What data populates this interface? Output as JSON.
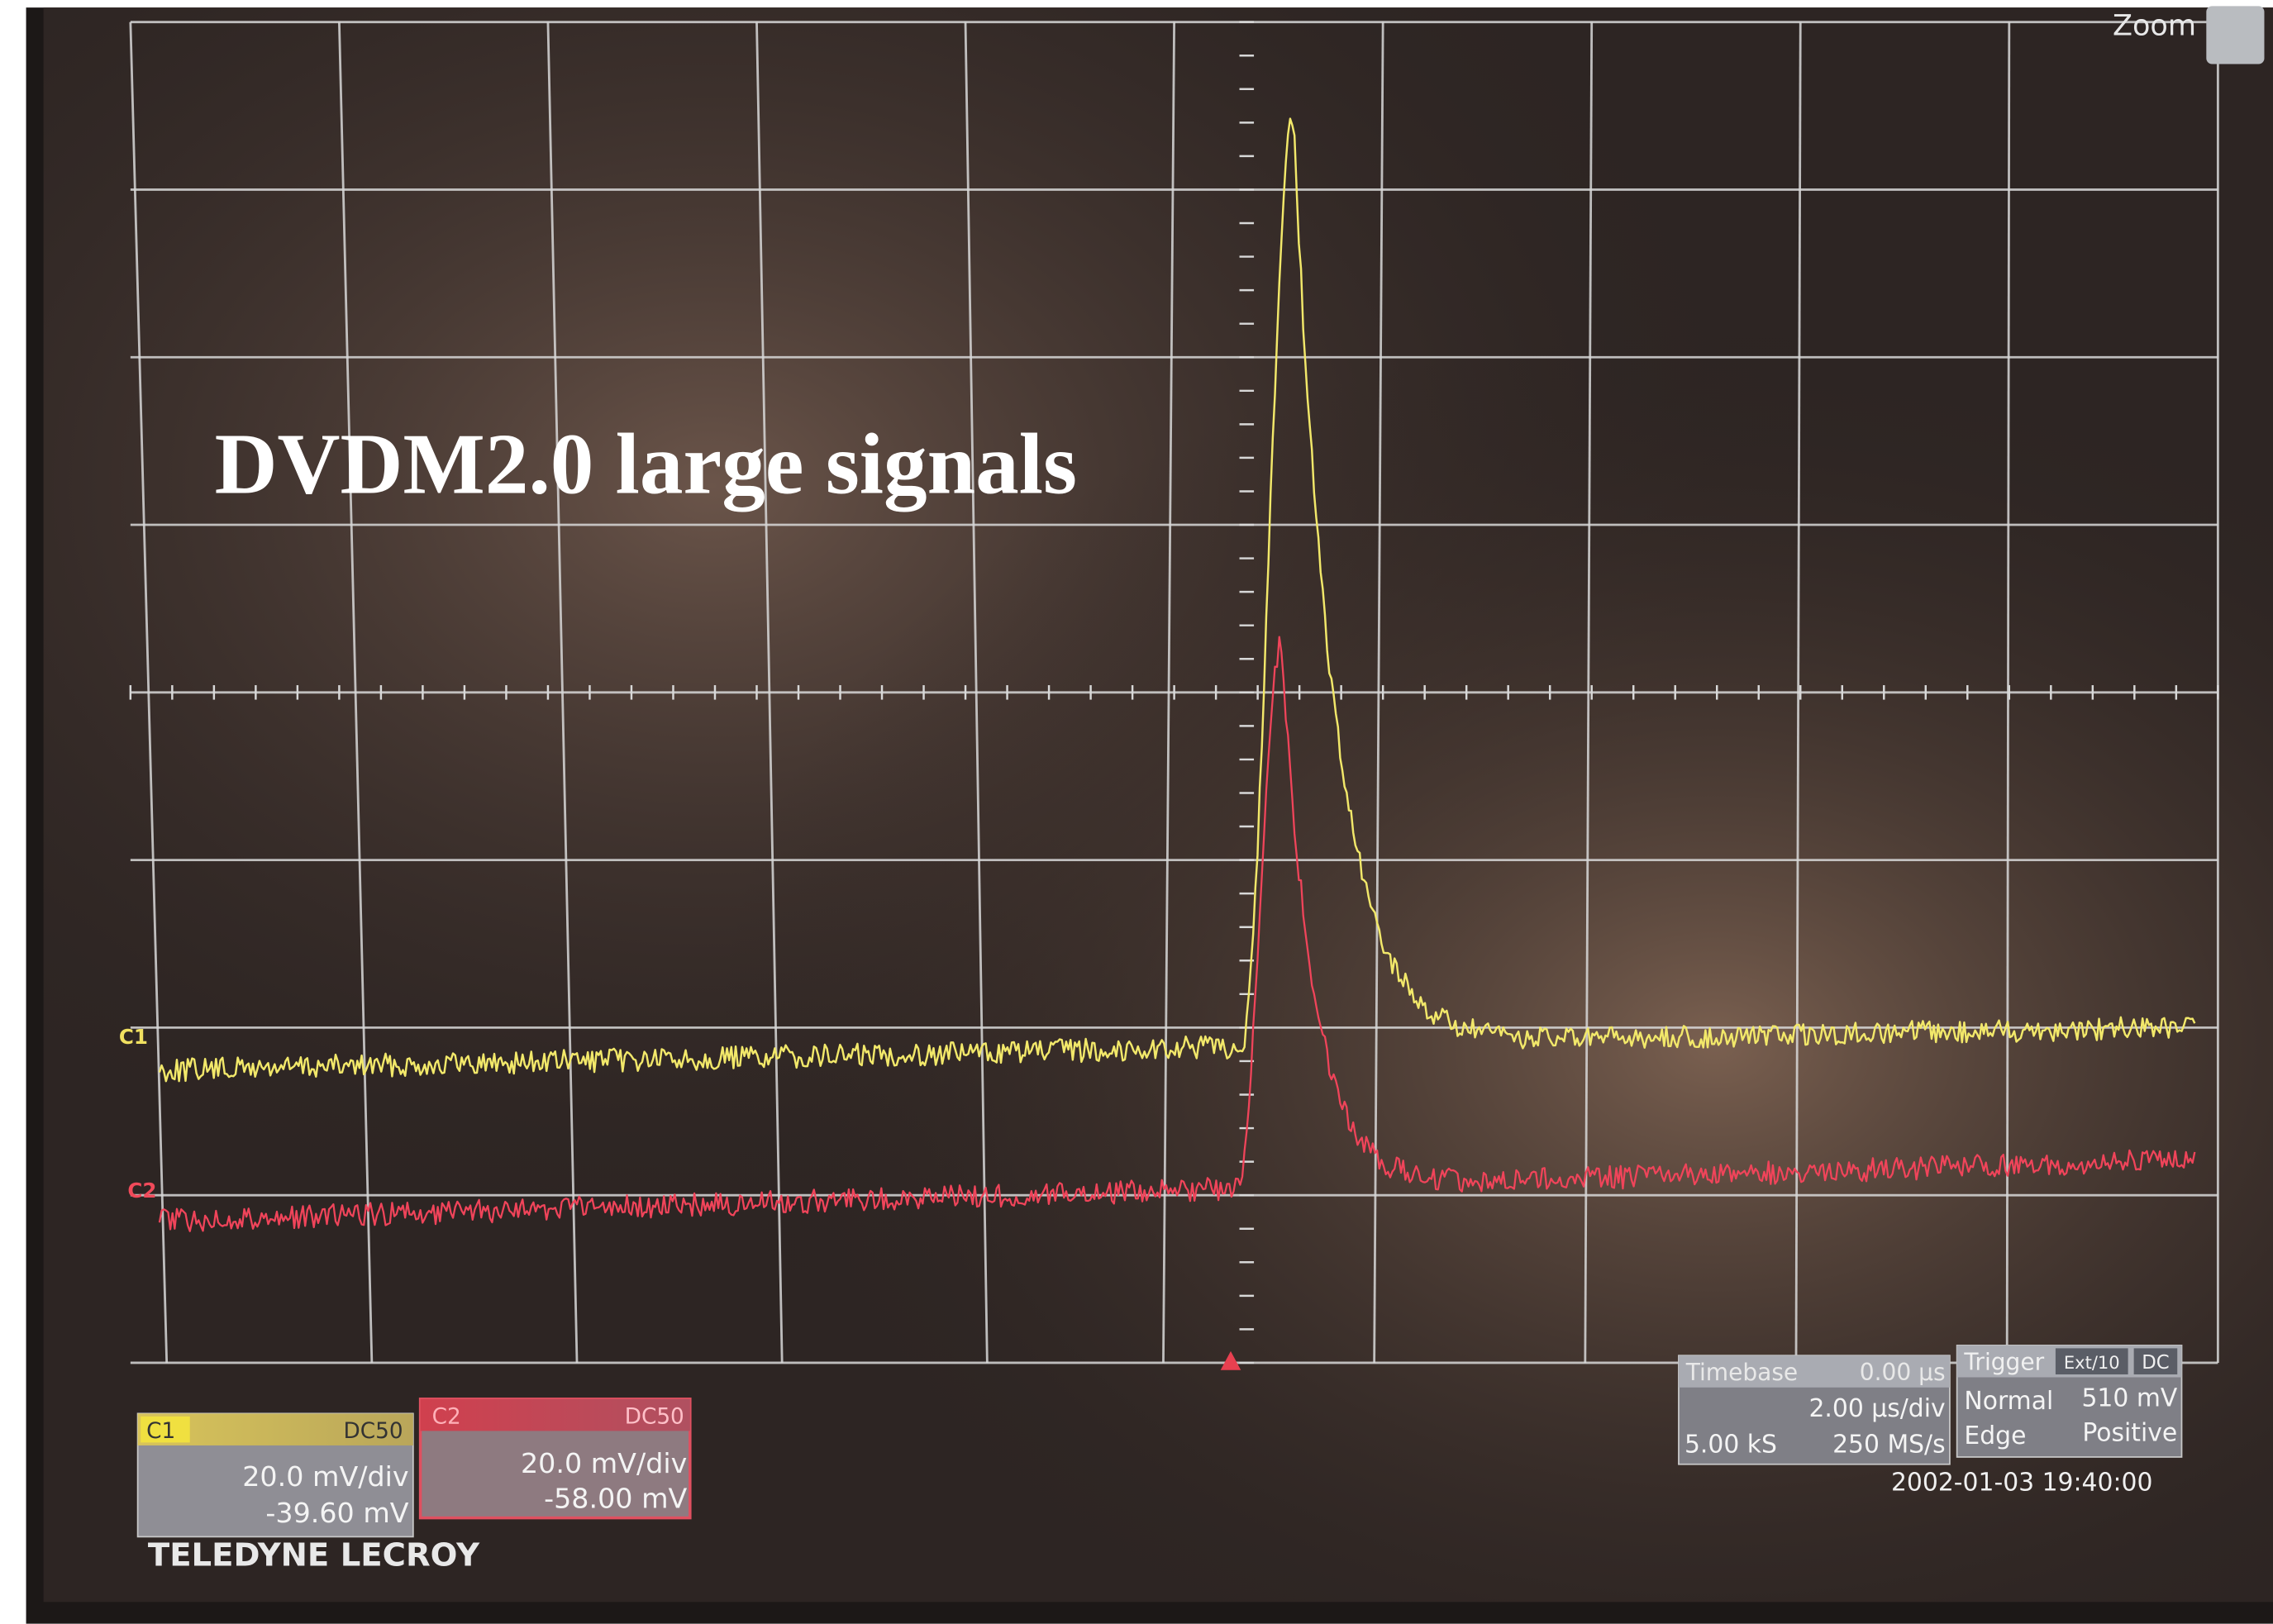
{
  "overlay_title": "DVDM2.0 large signals",
  "menu": {
    "zoom": "Zoom"
  },
  "traces": {
    "c1_marker": "C1",
    "c2_marker": "C2"
  },
  "channels": [
    {
      "name": "C1",
      "coupling": "DC50",
      "scale": "20.0 mV/div",
      "offset": "-39.60 mV"
    },
    {
      "name": "C2",
      "coupling": "DC50",
      "scale": "20.0 mV/div",
      "offset": "-58.00 mV"
    }
  ],
  "timebase": {
    "label": "Timebase",
    "delay": "0.00 µs",
    "scale": "2.00 µs/div",
    "samples": "5.00 kS",
    "rate": "250 MS/s"
  },
  "trigger": {
    "label": "Trigger",
    "source": "Ext/10",
    "coupling": "DC",
    "mode": "Normal",
    "level": "510 mV",
    "type": "Edge",
    "slope": "Positive"
  },
  "timestamp": "2002-01-03 19:40:00",
  "brand": "TELEDYNE LECROY"
}
